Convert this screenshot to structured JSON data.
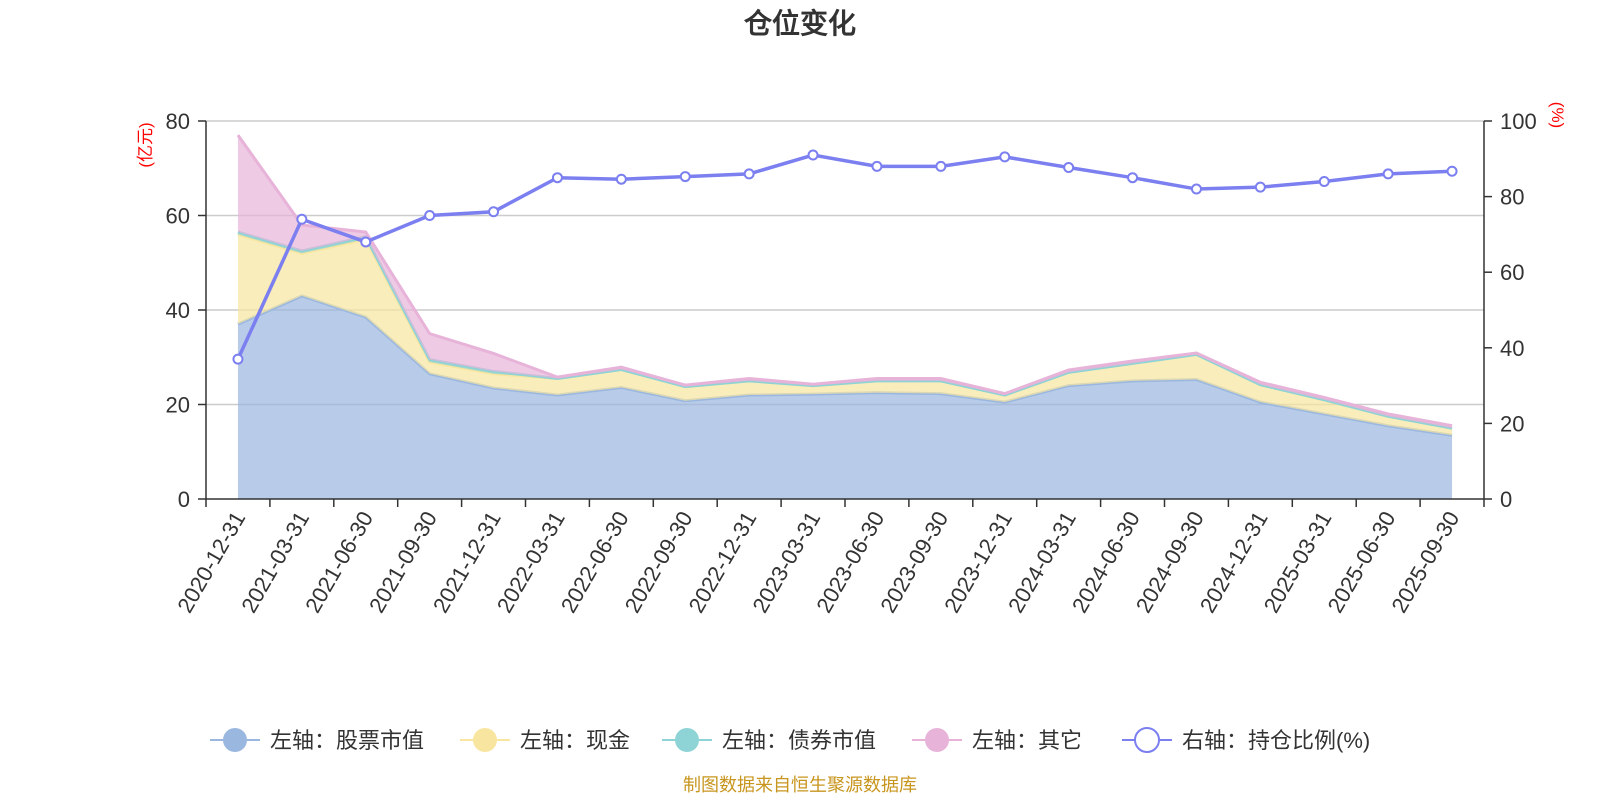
{
  "chart_data": {
    "type": "area",
    "title": "仓位变化",
    "left_axis": {
      "unit": "(亿元)",
      "ticks": [
        "0",
        "20",
        "40",
        "60",
        "80"
      ],
      "ylim": [
        0,
        80
      ]
    },
    "right_axis": {
      "unit": "(%)",
      "ticks": [
        "0",
        "20",
        "40",
        "60",
        "80",
        "100"
      ],
      "ylim": [
        0,
        100
      ]
    },
    "categories": [
      "2020-12-31",
      "2021-03-31",
      "2021-06-30",
      "2021-09-30",
      "2021-12-31",
      "2022-03-31",
      "2022-06-30",
      "2022-09-30",
      "2022-12-31",
      "2023-03-31",
      "2023-06-30",
      "2023-09-30",
      "2023-12-31",
      "2024-03-31",
      "2024-06-30",
      "2024-09-30",
      "2024-12-31",
      "2025-03-31",
      "2025-06-30",
      "2025-09-30"
    ],
    "series": [
      {
        "name": "左轴：股票市值",
        "axis": "left",
        "color": "#9ab7e0",
        "values": [
          37,
          43,
          38.5,
          26.5,
          23.5,
          22,
          23.6,
          20.8,
          22,
          22.2,
          22.5,
          22.3,
          20.5,
          24,
          25,
          25.3,
          20.5,
          18,
          15.5,
          13.5
        ]
      },
      {
        "name": "左轴：现金",
        "axis": "left",
        "color": "#f8e6a0",
        "values": [
          19,
          9,
          16.5,
          2.5,
          3,
          3.5,
          3.8,
          3,
          3,
          1.8,
          2.5,
          2.7,
          1.5,
          2.8,
          3.7,
          5.3,
          3.7,
          3,
          2,
          1.5
        ]
      },
      {
        "name": "左轴：债券市值",
        "axis": "left",
        "color": "#8ed3d6",
        "values": [
          0.5,
          0.5,
          0.5,
          0.5,
          0.5,
          0,
          0,
          0,
          0,
          0,
          0,
          0,
          0,
          0,
          0,
          0,
          0,
          0,
          0,
          0
        ]
      },
      {
        "name": "左轴：其它",
        "axis": "left",
        "color": "#e7b3d9",
        "values": [
          20.5,
          5.5,
          1,
          5.5,
          3.8,
          0.3,
          0.5,
          0.3,
          0.5,
          0.3,
          0.5,
          0.5,
          0.3,
          0.5,
          0.5,
          0.3,
          0.5,
          0.5,
          0.5,
          0.5
        ]
      },
      {
        "name": "右轴：持仓比例(%)",
        "axis": "right",
        "color": "#7b7ff0",
        "values": [
          37,
          74,
          68,
          75,
          76,
          85,
          84.6,
          85.3,
          86,
          91,
          88,
          88,
          90.5,
          87.7,
          85,
          82,
          82.5,
          84,
          86,
          86.7
        ]
      }
    ],
    "grid": true,
    "legend_position": "bottom"
  },
  "footer": {
    "source": "制图数据来自恒生聚源数据库"
  }
}
